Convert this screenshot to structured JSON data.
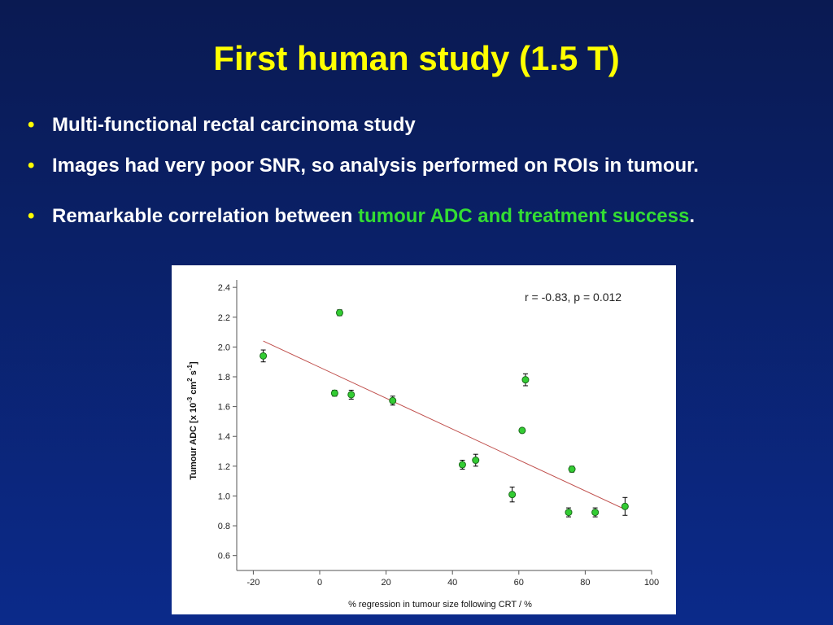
{
  "slide": {
    "title": "First human study (1.5 T)",
    "bullet_symbol": "•",
    "bullets": [
      {
        "text": "Multi-functional rectal carcinoma study"
      },
      {
        "text": "Images had very poor SNR, so analysis performed on ROIs in tumour."
      },
      {
        "text_before": "Remarkable correlation between ",
        "highlight": "tumour ADC and treatment success",
        "text_after": "."
      }
    ],
    "colors": {
      "title": "#ffff00",
      "bullet_text": "#ffffff",
      "highlight": "#33dd33",
      "background": "#0b2a8a"
    }
  },
  "chart_data": {
    "type": "scatter",
    "title": "",
    "xlabel": "% regression in tumour size following CRT / %",
    "ylabel_parts": {
      "a": "Tumour ADC [x 10",
      "exp1": "-3",
      "b": " cm",
      "exp2": "2",
      "c": " s",
      "exp3": "-1",
      "d": "]"
    },
    "annotation": "r = -0.83, p = 0.012",
    "xlim": [
      -25,
      100
    ],
    "ylim": [
      0.5,
      2.45
    ],
    "xticks": [
      "-20",
      "0",
      "20",
      "40",
      "60",
      "80",
      "100"
    ],
    "yticks": [
      "0.6",
      "0.8",
      "1.0",
      "1.2",
      "1.4",
      "1.6",
      "1.8",
      "2.0",
      "2.2",
      "2.4"
    ],
    "points": [
      {
        "x": -17,
        "y": 1.94,
        "err": 0.04
      },
      {
        "x": 4.5,
        "y": 1.69,
        "err": 0.02
      },
      {
        "x": 6,
        "y": 2.23,
        "err": 0.02
      },
      {
        "x": 9.5,
        "y": 1.68,
        "err": 0.03
      },
      {
        "x": 22,
        "y": 1.64,
        "err": 0.03
      },
      {
        "x": 43,
        "y": 1.21,
        "err": 0.03
      },
      {
        "x": 47,
        "y": 1.24,
        "err": 0.04
      },
      {
        "x": 58,
        "y": 1.01,
        "err": 0.05
      },
      {
        "x": 61,
        "y": 1.44,
        "err": 0.01
      },
      {
        "x": 62,
        "y": 1.78,
        "err": 0.04
      },
      {
        "x": 75,
        "y": 0.89,
        "err": 0.03
      },
      {
        "x": 76,
        "y": 1.18,
        "err": 0.02
      },
      {
        "x": 83,
        "y": 0.89,
        "err": 0.03
      },
      {
        "x": 92,
        "y": 0.93,
        "err": 0.06
      }
    ],
    "fit_line": {
      "x": [
        -17,
        92
      ],
      "y": [
        2.04,
        0.91
      ]
    },
    "marker_color": "#33cc33",
    "fit_color": "#c0504d",
    "grid": false
  }
}
